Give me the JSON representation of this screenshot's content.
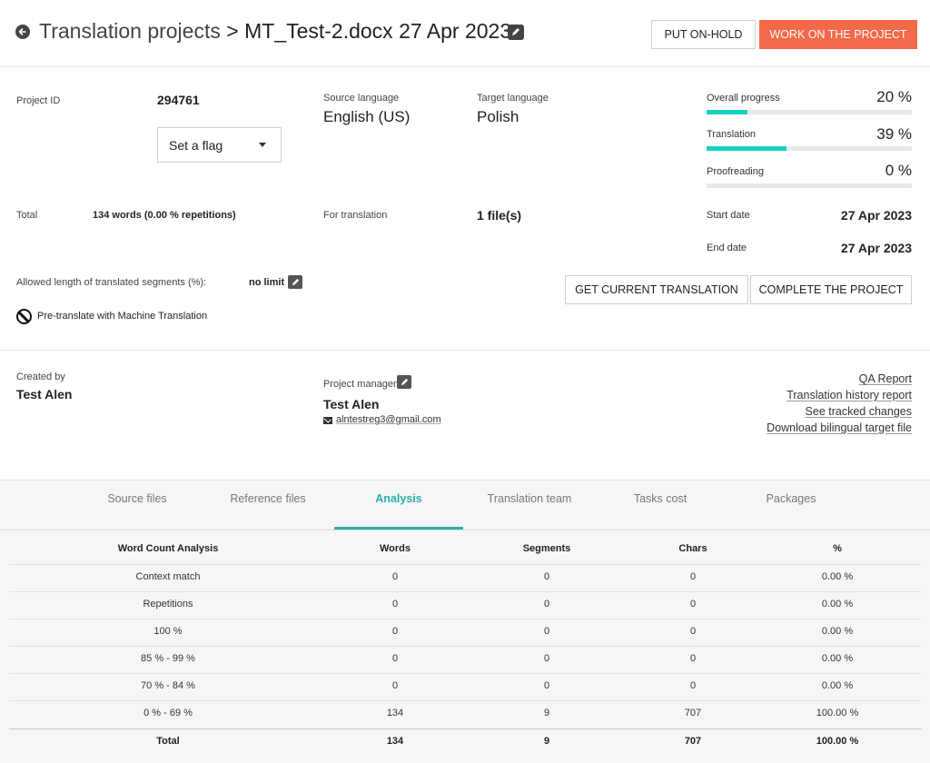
{
  "header": {
    "crumb": "Translation projects",
    "separator": ">",
    "project_name": "MT_Test-2.docx 27 Apr 2023",
    "put_on_hold": "PUT ON-HOLD",
    "work_on_project": "WORK ON THE PROJECT"
  },
  "details": {
    "project_id_label": "Project ID",
    "project_id": "294761",
    "flag_select": "Set a flag",
    "source_label": "Source language",
    "source": "English (US)",
    "target_label": "Target language",
    "target": "Polish",
    "total_label": "Total",
    "total_value": "134 words (0.00 % repetitions)",
    "for_translation_label": "For translation",
    "for_translation_value": "1 file(s)",
    "allowed_length_label": "Allowed length of translated segments (%):",
    "allowed_length_value": "no limit",
    "pretranslate_label": "Pre-translate with Machine Translation",
    "get_current_translation": "GET CURRENT TRANSLATION",
    "complete_project": "COMPLETE THE PROJECT"
  },
  "progress": {
    "overall_label": "Overall progress",
    "overall_value": "20 %",
    "overall_fraction": 0.2,
    "translation_label": "Translation",
    "translation_value": "39 %",
    "translation_fraction": 0.39,
    "proofreading_label": "Proofreading",
    "proofreading_value": "0 %",
    "proofreading_fraction": 0,
    "start_label": "Start date",
    "start_value": "27 Apr 2023",
    "end_label": "End date",
    "end_value": "27 Apr 2023"
  },
  "people": {
    "created_by_label": "Created by",
    "created_by": "Test Alen",
    "pm_label": "Project manager",
    "pm_name": "Test Alen",
    "pm_email": "alntestreg3@gmail.com"
  },
  "links": {
    "qa_report": "QA Report",
    "history_report": "Translation history report",
    "tracked_changes": "See tracked changes",
    "bilingual": "Download bilingual target file"
  },
  "tabs": [
    "Source files",
    "Reference files",
    "Analysis",
    "Translation team",
    "Tasks cost",
    "Packages"
  ],
  "analysis": {
    "headers": [
      "Word Count Analysis",
      "Words",
      "Segments",
      "Chars",
      "%"
    ],
    "rows": [
      [
        "Context match",
        "0",
        "0",
        "0",
        "0.00 %"
      ],
      [
        "Repetitions",
        "0",
        "0",
        "0",
        "0.00 %"
      ],
      [
        "100 %",
        "0",
        "0",
        "0",
        "0.00 %"
      ],
      [
        "85 % - 99 %",
        "0",
        "0",
        "0",
        "0.00 %"
      ],
      [
        "70 % - 84 %",
        "0",
        "0",
        "0",
        "0.00 %"
      ],
      [
        "0 % - 69 %",
        "134",
        "9",
        "707",
        "100.00 %"
      ]
    ],
    "total": [
      "Total",
      "134",
      "9",
      "707",
      "100.00 %"
    ]
  },
  "colors": {
    "accent": "#f4694a",
    "progress": "#17d1c1",
    "tab_active": "#2ab0a2"
  }
}
